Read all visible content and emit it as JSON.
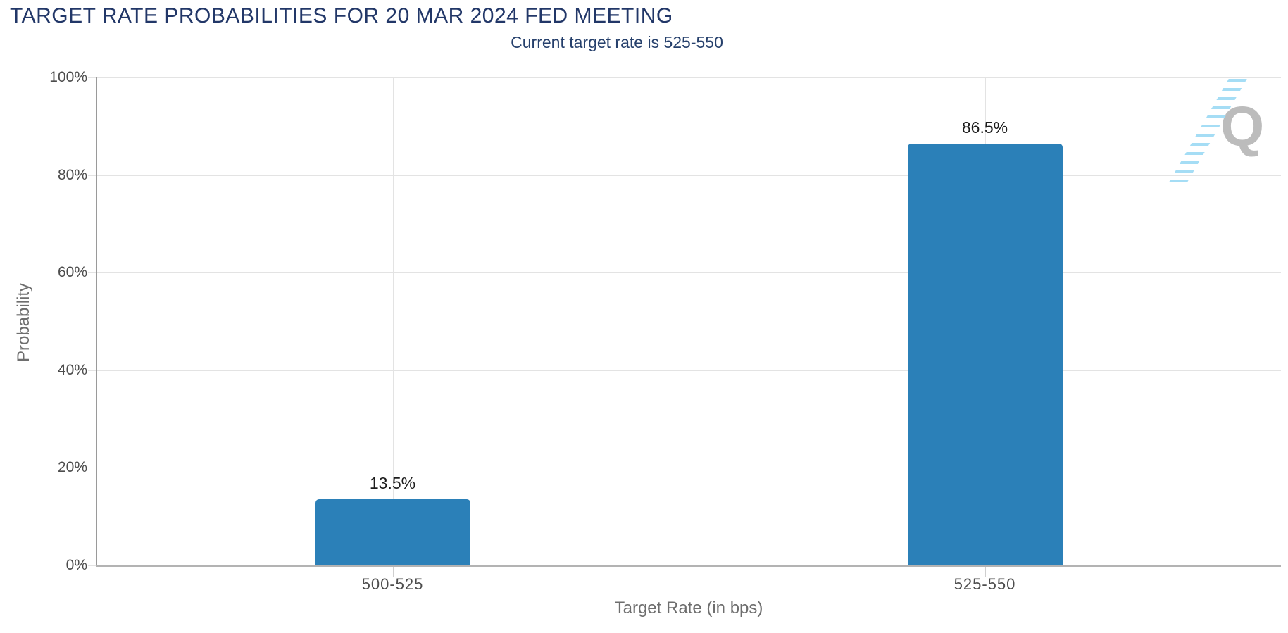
{
  "chart_data": {
    "type": "bar",
    "title": "TARGET RATE PROBABILITIES FOR 20 MAR 2024 FED MEETING",
    "subtitle": "Current target rate is 525-550",
    "xlabel": "Target Rate (in bps)",
    "ylabel": "Probability",
    "categories": [
      "500-525",
      "525-550"
    ],
    "values": [
      13.5,
      86.5
    ],
    "value_labels": [
      "13.5%",
      "86.5%"
    ],
    "ylim": [
      0,
      100
    ],
    "ytick_labels": [
      "0%",
      "20%",
      "40%",
      "60%",
      "80%",
      "100%"
    ],
    "grid": true,
    "legend": "none",
    "bar_color": "#2b80b8"
  },
  "watermark": {
    "letter": "Q"
  },
  "colors": {
    "title": "#223768",
    "subtitle": "#26406c",
    "tick_label": "#4d4d4d",
    "axis_title": "#6e6e6e",
    "data_label": "#1c1c1c",
    "grid_line": "#e3e3e3",
    "x_axis_line": "#b3b3b3",
    "y_axis_line": "#9a9a9a",
    "x_tick": "#cfcfcf",
    "watermark_letter": "#bcbcbc",
    "watermark_dash": "#a5ddf5"
  }
}
